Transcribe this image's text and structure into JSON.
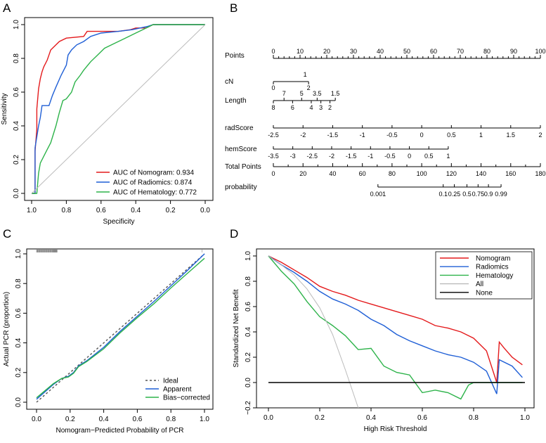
{
  "chart_data": [
    {
      "panel": "A",
      "type": "line",
      "title": "",
      "xlabel": "Specificity",
      "ylabel": "Sensitivity",
      "xlim": [
        1.0,
        0.0
      ],
      "ylim": [
        0.0,
        1.0
      ],
      "x_ticks": [
        "1.0",
        "0.8",
        "0.6",
        "0.4",
        "0.2",
        "0.0"
      ],
      "y_ticks": [
        "0.0",
        "0.2",
        "0.4",
        "0.6",
        "0.8",
        "1.0"
      ],
      "legend": [
        "AUC of Nomogram:  0.934",
        "AUC of Radiomics:  0.874",
        "AUC of Hematology:  0.772"
      ],
      "legend_position": "bottom-right",
      "series": [
        {
          "name": "Nomogram",
          "color": "#e41a1c",
          "x": [
            1.0,
            0.98,
            0.98,
            0.97,
            0.97,
            0.96,
            0.95,
            0.94,
            0.93,
            0.91,
            0.9,
            0.89,
            0.86,
            0.84,
            0.8,
            0.7,
            0.68,
            0.5,
            0.43,
            0.4,
            0.34,
            0.3,
            0.0
          ],
          "y": [
            0.0,
            0.0,
            0.25,
            0.38,
            0.5,
            0.62,
            0.68,
            0.72,
            0.75,
            0.79,
            0.82,
            0.85,
            0.88,
            0.9,
            0.92,
            0.93,
            0.96,
            0.96,
            0.97,
            0.98,
            0.98,
            1.0,
            1.0
          ]
        },
        {
          "name": "Radiomics",
          "color": "#1f5fd6",
          "x": [
            1.0,
            0.98,
            0.98,
            0.96,
            0.95,
            0.94,
            0.9,
            0.88,
            0.86,
            0.83,
            0.8,
            0.79,
            0.77,
            0.74,
            0.72,
            0.7,
            0.66,
            0.6,
            0.5,
            0.42,
            0.33,
            0.3,
            0.0
          ],
          "y": [
            0.0,
            0.0,
            0.27,
            0.4,
            0.45,
            0.52,
            0.52,
            0.58,
            0.63,
            0.7,
            0.76,
            0.82,
            0.85,
            0.88,
            0.89,
            0.9,
            0.93,
            0.95,
            0.96,
            0.97,
            0.99,
            1.0,
            1.0
          ]
        },
        {
          "name": "Hematology",
          "color": "#2db34a",
          "x": [
            1.0,
            0.97,
            0.96,
            0.95,
            0.93,
            0.91,
            0.89,
            0.86,
            0.84,
            0.82,
            0.8,
            0.77,
            0.75,
            0.72,
            0.7,
            0.66,
            0.62,
            0.58,
            0.52,
            0.46,
            0.4,
            0.36,
            0.32,
            0.3,
            0.0
          ],
          "y": [
            0.0,
            0.0,
            0.12,
            0.18,
            0.22,
            0.26,
            0.3,
            0.4,
            0.48,
            0.55,
            0.56,
            0.6,
            0.66,
            0.7,
            0.73,
            0.78,
            0.82,
            0.86,
            0.89,
            0.92,
            0.95,
            0.97,
            0.99,
            1.0,
            1.0
          ]
        },
        {
          "name": "Reference",
          "color": "#bbbbbb",
          "x": [
            1.0,
            0.0
          ],
          "y": [
            0.0,
            1.0
          ]
        }
      ]
    },
    {
      "panel": "B",
      "type": "nomogram",
      "rows": [
        {
          "label": "Points",
          "ticks": [
            "0",
            "10",
            "20",
            "30",
            "40",
            "50",
            "60",
            "70",
            "80",
            "90",
            "100"
          ],
          "values": [
            0,
            10,
            20,
            30,
            40,
            50,
            60,
            70,
            80,
            90,
            100
          ],
          "range": [
            0,
            100
          ]
        },
        {
          "label": "cN",
          "ticks": [
            "1",
            "0",
            "2"
          ],
          "values": [
            1,
            0,
            2
          ],
          "positions_in_points": [
            13.2,
            0,
            13.2
          ],
          "placement": [
            "above",
            "below",
            "below"
          ]
        },
        {
          "label": "Length",
          "upper_ticks": [
            "7",
            "5",
            "3.5",
            "1.5"
          ],
          "upper_points": [
            4,
            10.6,
            16.4,
            23.2
          ],
          "lower_ticks": [
            "8",
            "6",
            "4",
            "3",
            "2"
          ],
          "lower_points": [
            0,
            7.2,
            14.2,
            17.8,
            21.2
          ]
        },
        {
          "label": "radScore",
          "ticks": [
            "-2.5",
            "-2",
            "-1.5",
            "-1",
            "-0.5",
            "0",
            "0.5",
            "1",
            "1.5",
            "2"
          ],
          "values": [
            -2.5,
            -2,
            -1.5,
            -1,
            -0.5,
            0,
            0.5,
            1,
            1.5,
            2
          ],
          "range": [
            -2.5,
            2
          ]
        },
        {
          "label": "hemScore",
          "ticks": [
            "-3.5",
            "-3",
            "-2.5",
            "-2",
            "-1.5",
            "-1",
            "-0.5",
            "0",
            "0.5",
            "1"
          ],
          "values": [
            -3.5,
            -3,
            -2.5,
            -2,
            -1.5,
            -1,
            -0.5,
            0,
            0.5,
            1
          ],
          "range": [
            -3.5,
            1
          ],
          "points_range": [
            0,
            65.5
          ]
        },
        {
          "label": "Total Points",
          "ticks": [
            "0",
            "20",
            "40",
            "60",
            "80",
            "100",
            "120",
            "140",
            "160",
            "180"
          ],
          "values": [
            0,
            20,
            40,
            60,
            80,
            100,
            120,
            140,
            160,
            180
          ],
          "range": [
            0,
            180
          ]
        },
        {
          "label": "probability",
          "ticks": [
            "0.001",
            "0.1",
            "0.25",
            "0.5",
            "0.75",
            "0.9",
            "0.99"
          ],
          "total_points": [
            70.5,
            114.5,
            122,
            130.5,
            138,
            145,
            153.5
          ]
        }
      ]
    },
    {
      "panel": "C",
      "type": "line",
      "xlabel": "Nomogram−Predicted Probability of PCR",
      "ylabel": "Actual PCR (proportion)",
      "xlim": [
        0,
        1
      ],
      "ylim": [
        0,
        1
      ],
      "x_ticks": [
        "0.0",
        "0.2",
        "0.4",
        "0.6",
        "0.8",
        "1.0"
      ],
      "y_ticks": [
        "0.0",
        "0.2",
        "0.4",
        "0.6",
        "0.8",
        "1.0"
      ],
      "legend": [
        "Ideal",
        "Apparent",
        "Bias−corrected"
      ],
      "legend_position": "bottom-right",
      "series": [
        {
          "name": "Ideal",
          "color": "#555555",
          "dashed": true,
          "x": [
            0,
            1
          ],
          "y": [
            0,
            1
          ]
        },
        {
          "name": "Apparent",
          "color": "#1f5fd6",
          "x": [
            0.0,
            0.1,
            0.15,
            0.19,
            0.22,
            0.25,
            0.3,
            0.4,
            0.5,
            0.6,
            0.7,
            0.8,
            0.9,
            1.0
          ],
          "y": [
            0.02,
            0.12,
            0.16,
            0.175,
            0.2,
            0.245,
            0.28,
            0.37,
            0.48,
            0.58,
            0.68,
            0.785,
            0.89,
            1.0
          ]
        },
        {
          "name": "Bias−corrected",
          "color": "#2db34a",
          "x": [
            0.0,
            0.1,
            0.15,
            0.19,
            0.22,
            0.25,
            0.3,
            0.4,
            0.5,
            0.6,
            0.7,
            0.8,
            0.9,
            1.0
          ],
          "y": [
            0.03,
            0.125,
            0.16,
            0.17,
            0.195,
            0.24,
            0.275,
            0.36,
            0.47,
            0.57,
            0.665,
            0.77,
            0.87,
            0.97
          ]
        }
      ]
    },
    {
      "panel": "D",
      "type": "line",
      "xlabel": "High Risk Threshold",
      "ylabel": "Standardized Net Benefit",
      "xlim": [
        0,
        1
      ],
      "ylim": [
        -0.2,
        1.0
      ],
      "x_ticks": [
        "0.0",
        "0.2",
        "0.4",
        "0.6",
        "0.8",
        "1.0"
      ],
      "y_ticks": [
        "−0.2",
        "0.0",
        "0.2",
        "0.4",
        "0.6",
        "0.8",
        "1.0"
      ],
      "legend": [
        "Nomogram",
        "Radiomics",
        "Hematology",
        "All",
        "None"
      ],
      "legend_position": "top-right",
      "series": [
        {
          "name": "Nomogram",
          "color": "#e41a1c",
          "x": [
            0.0,
            0.05,
            0.1,
            0.15,
            0.2,
            0.25,
            0.3,
            0.35,
            0.4,
            0.45,
            0.5,
            0.55,
            0.6,
            0.65,
            0.7,
            0.75,
            0.8,
            0.85,
            0.89,
            0.9,
            0.92,
            0.95,
            0.99
          ],
          "y": [
            1.0,
            0.95,
            0.89,
            0.83,
            0.76,
            0.72,
            0.69,
            0.65,
            0.62,
            0.59,
            0.56,
            0.53,
            0.5,
            0.45,
            0.43,
            0.4,
            0.35,
            0.25,
            0.0,
            0.32,
            0.27,
            0.2,
            0.14
          ]
        },
        {
          "name": "Radiomics",
          "color": "#1f5fd6",
          "x": [
            0.0,
            0.05,
            0.1,
            0.15,
            0.2,
            0.25,
            0.3,
            0.35,
            0.4,
            0.45,
            0.5,
            0.55,
            0.6,
            0.65,
            0.7,
            0.75,
            0.8,
            0.85,
            0.89,
            0.9,
            0.95,
            0.99
          ],
          "y": [
            1.0,
            0.93,
            0.87,
            0.8,
            0.72,
            0.66,
            0.62,
            0.57,
            0.5,
            0.45,
            0.38,
            0.33,
            0.29,
            0.25,
            0.22,
            0.2,
            0.16,
            0.09,
            -0.09,
            0.18,
            0.13,
            0.04
          ]
        },
        {
          "name": "Hematology",
          "color": "#2db34a",
          "x": [
            0.0,
            0.05,
            0.1,
            0.15,
            0.2,
            0.25,
            0.3,
            0.35,
            0.4,
            0.45,
            0.5,
            0.55,
            0.6,
            0.65,
            0.7,
            0.75,
            0.78,
            0.8,
            0.85,
            0.9,
            0.95,
            0.99
          ],
          "y": [
            1.0,
            0.88,
            0.78,
            0.64,
            0.52,
            0.45,
            0.37,
            0.26,
            0.27,
            0.13,
            0.08,
            0.06,
            -0.08,
            -0.06,
            -0.08,
            -0.13,
            -0.02,
            0.0,
            0.0,
            0.0,
            0.0,
            0.0
          ]
        },
        {
          "name": "All",
          "color": "#bbbbbb",
          "x": [
            0.0,
            0.05,
            0.1,
            0.15,
            0.2,
            0.25,
            0.3,
            0.35
          ],
          "y": [
            1.0,
            0.93,
            0.85,
            0.74,
            0.59,
            0.38,
            0.1,
            -0.2
          ]
        },
        {
          "name": "None",
          "color": "#000000",
          "x": [
            0.0,
            1.0
          ],
          "y": [
            0.0,
            0.0
          ]
        }
      ]
    }
  ],
  "panel_labels": [
    "A",
    "B",
    "C",
    "D"
  ]
}
